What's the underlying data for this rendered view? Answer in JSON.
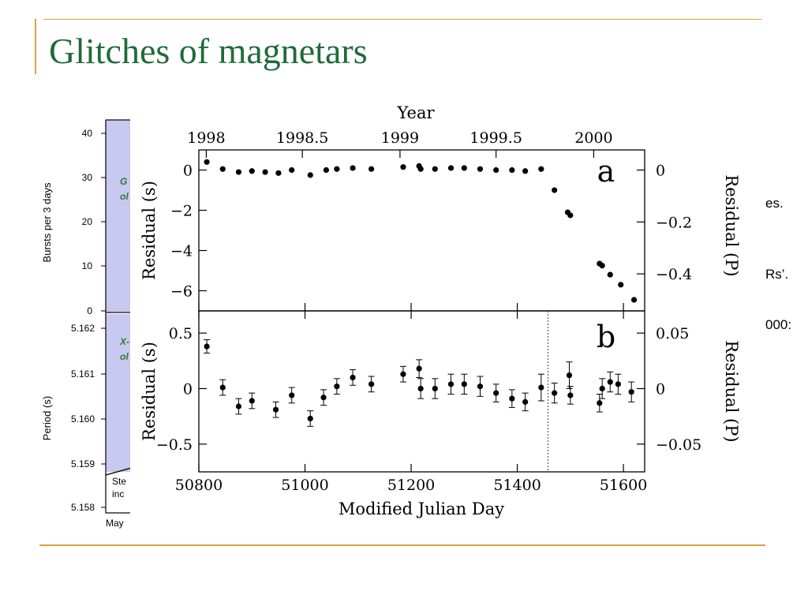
{
  "slide": {
    "title": "Glitches of magnetars",
    "text_fragments": [
      "es.",
      "Rs’.",
      "000:"
    ]
  },
  "left_panel": {
    "top_ylabel": "Bursts per 3 days",
    "top_yticks": [
      "40",
      "30",
      "20",
      "10",
      "0"
    ],
    "top_annotation": [
      "G",
      "ol"
    ],
    "bottom_ylabel": "Period (s)",
    "bottom_yticks": [
      "5.162",
      "5.161",
      "5.160",
      "5.159",
      "5.158"
    ],
    "bottom_annotation": [
      "X-",
      "ol"
    ],
    "step_label": [
      "Ste",
      "inc"
    ],
    "xlabel_fragment": "May",
    "fill_color": "#c8c8f0",
    "line_color": "#2d7a2d"
  },
  "chart_data": [
    {
      "type": "scatter",
      "panel_label": "a",
      "top_axis_label": "Year",
      "top_ticks": [
        "1998",
        "1998.5",
        "1999",
        "1999.5",
        "2000"
      ],
      "top_tick_values": [
        50814,
        50995,
        51179,
        51360,
        51544
      ],
      "xlabel": "",
      "ylabel": "Residual (s)",
      "right_ylabel": "Residual (P)",
      "ylim": [
        -7,
        1
      ],
      "yticks": [
        0,
        -2,
        -4,
        -6
      ],
      "ytick_labels": [
        "0",
        "−2",
        "−4",
        "−6"
      ],
      "right_ytick_labels": [
        "0",
        "−0.2",
        "−0.4"
      ],
      "right_ytick_positions": [
        0,
        -2.58,
        -5.16
      ],
      "xlim": [
        50800,
        51640
      ],
      "x": [
        50815,
        50845,
        50875,
        50900,
        50925,
        50950,
        50975,
        51010,
        51040,
        51060,
        51090,
        51125,
        51185,
        51215,
        51218,
        51245,
        51275,
        51300,
        51330,
        51360,
        51390,
        51415,
        51445,
        51470,
        51495,
        51500,
        51555,
        51560,
        51575,
        51595,
        51620
      ],
      "y": [
        0.4,
        0.05,
        -0.1,
        -0.05,
        -0.1,
        -0.15,
        0.0,
        -0.25,
        0.0,
        0.05,
        0.1,
        0.05,
        0.15,
        0.2,
        0.05,
        0.05,
        0.1,
        0.1,
        0.05,
        0.0,
        0.0,
        -0.05,
        0.05,
        -1.0,
        -2.1,
        -2.25,
        -4.65,
        -4.75,
        -5.2,
        -5.7,
        -6.45
      ]
    },
    {
      "type": "scatter",
      "panel_label": "b",
      "xlabel": "Modified Julian Day",
      "ylabel": "Residual (s)",
      "right_ylabel": "Residual (P)",
      "ylim": [
        -0.75,
        0.7
      ],
      "yticks": [
        0.5,
        0,
        -0.5
      ],
      "ytick_labels": [
        "0.5",
        "0",
        "−0.5"
      ],
      "right_ytick_labels": [
        "0.05",
        "0",
        "−0.05"
      ],
      "right_ytick_positions": [
        0.5,
        0,
        -0.5
      ],
      "xlim": [
        50800,
        51640
      ],
      "xticks": [
        50800,
        51000,
        51200,
        51400,
        51600
      ],
      "xtick_labels": [
        "50800",
        "51000",
        "51200",
        "51400",
        "51600"
      ],
      "vline_x": 51458,
      "x": [
        50815,
        50845,
        50875,
        50900,
        50945,
        50975,
        51010,
        51035,
        51060,
        51090,
        51125,
        51185,
        51215,
        51218,
        51245,
        51275,
        51300,
        51330,
        51360,
        51390,
        51415,
        51445,
        51470,
        51498,
        51500,
        51555,
        51560,
        51575,
        51590,
        51615
      ],
      "y": [
        0.38,
        0.01,
        -0.16,
        -0.11,
        -0.19,
        -0.06,
        -0.27,
        -0.08,
        0.02,
        0.1,
        0.04,
        0.13,
        0.18,
        0.0,
        0.0,
        0.04,
        0.04,
        0.02,
        -0.04,
        -0.09,
        -0.12,
        0.01,
        -0.04,
        0.12,
        -0.06,
        -0.13,
        0.0,
        0.06,
        0.04,
        -0.03
      ],
      "yerr": [
        0.06,
        0.07,
        0.07,
        0.07,
        0.07,
        0.07,
        0.07,
        0.07,
        0.07,
        0.07,
        0.07,
        0.07,
        0.08,
        0.09,
        0.09,
        0.09,
        0.09,
        0.09,
        0.08,
        0.08,
        0.08,
        0.12,
        0.09,
        0.12,
        0.08,
        0.08,
        0.09,
        0.09,
        0.09,
        0.09
      ]
    }
  ]
}
